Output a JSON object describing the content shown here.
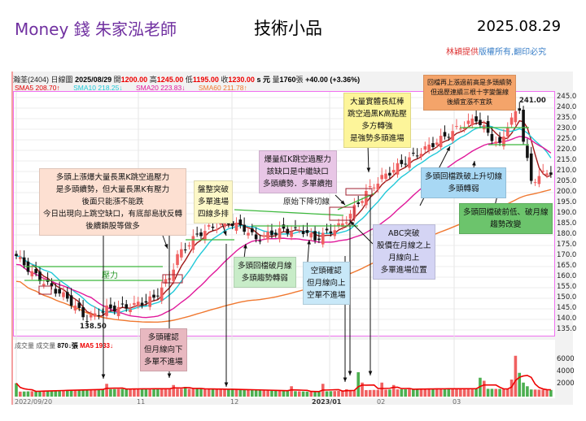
{
  "header": {
    "brand": "Money 錢  朱家泓老師",
    "title": "技術小品",
    "date": "2025.08.29",
    "copyright_red": "林穎提供",
    "copyright_blue": "版權所有,翻印必究"
  },
  "infobar": {
    "stock": "瀚荃(2404)",
    "chart_type": "日線圖",
    "date": "2025/08/29",
    "open_label": "開",
    "open": "1200.00",
    "high_label": "高",
    "high": "1245.00",
    "low_label": "低",
    "low": "1195.00",
    "close_label": "收",
    "close": "1230.00",
    "unit": "s 元",
    "volume_label": "量",
    "volume": "1760",
    "volume_unit": "張",
    "change": "+40.00 (+3.36%)"
  },
  "sma": [
    {
      "label": "SMA5 208.70↑",
      "color": "#e00000"
    },
    {
      "label": "SMA10 218.25↓",
      "color": "#20c8d8"
    },
    {
      "label": "SMA20 223.83↓",
      "color": "#e0189a"
    },
    {
      "label": "SMA60 211.78↑",
      "color": "#f07830"
    }
  ],
  "volume_header": {
    "label1": "成交量",
    "label2": "成交量",
    "value": "870↓張",
    "ma": "MA5 1933↓"
  },
  "price_axis": [
    "245.0",
    "240.0",
    "235.0",
    "230.0",
    "225.0",
    "220.0",
    "215.0",
    "210.0",
    "205.0",
    "200.0",
    "195.0",
    "190.0",
    "185.0",
    "180.0",
    "175.0",
    "170.0",
    "165.0",
    "160.0",
    "155.0",
    "150.0",
    "145.0",
    "140.0",
    "135.0"
  ],
  "volume_axis": [
    "6000",
    "4000",
    "2000"
  ],
  "date_axis": [
    "2022/09/20",
    "11",
    "12",
    "2023/01",
    "02",
    "03"
  ],
  "labels": {
    "pressure": "壓力",
    "low_price": "138.50",
    "high_price": "241.00",
    "downtrend": "原始下降切線"
  },
  "notes": [
    {
      "id": "top-right",
      "lines": [
        "回檔再上漲過前高是多頭續勢",
        "但過歷連續三根十字變盤線",
        "後續宜漲不宜跌"
      ],
      "color": "#f4a46a"
    },
    {
      "id": "long-red",
      "lines": [
        "大量實體長紅棒",
        "跳空過黑K高點壓",
        "多方轉強",
        "是強勢多頭進場"
      ],
      "color": "#fdf59a"
    },
    {
      "id": "gap",
      "lines": [
        "爆量紅K跳空過壓力",
        "該缺口是中繼缺口",
        "多頭續勢．多單續抱"
      ],
      "color": "#e8c6e6"
    },
    {
      "id": "left",
      "lines": [
        "多頭上漲爆大量長黑K跳空過壓力",
        "是多頭續勢，但大量長黑K有壓力",
        "後面只能漲不能跌",
        "今日出現向上跳空缺口，有底部島狀反轉",
        "後續鎖股等做多"
      ],
      "color": "#fde0d2"
    },
    {
      "id": "consolidation",
      "lines": [
        "盤整突破",
        "多單進場",
        "四線多排"
      ],
      "color": "#fdf8c8"
    },
    {
      "id": "below-month",
      "lines": [
        "多頭回檔破月線",
        "多頭趨勢轉弱"
      ],
      "color": "#c8ecc8"
    },
    {
      "id": "bear-confirm",
      "lines": [
        "空頭確認",
        "但月線向上",
        "空單不進場"
      ],
      "color": "#c8e8f8"
    },
    {
      "id": "abc",
      "lines": [
        "ABC突破",
        "股價在月線之上",
        "月線向上",
        "多單進場位置"
      ],
      "color": "#d4d4f4"
    },
    {
      "id": "trendline-break",
      "lines": [
        "多頭回檔跌破上升切線",
        "多頭轉弱"
      ],
      "color": "#a8d8f4"
    },
    {
      "id": "prev-low",
      "lines": [
        "多頭回檔破前低、破月線",
        "趨勢改變"
      ],
      "color": "#6cc46c"
    },
    {
      "id": "bull-confirm",
      "lines": [
        "多頭確認",
        "但月線向下",
        "多單不進場"
      ],
      "color": "#e8b8c0"
    }
  ],
  "chart_data": {
    "type": "candlestick",
    "price_range": [
      135,
      245
    ],
    "volume_range": [
      0,
      7000
    ],
    "close_keypoints": [
      [
        0,
        170
      ],
      [
        4,
        162
      ],
      [
        9,
        155
      ],
      [
        13,
        150
      ],
      [
        18,
        140
      ],
      [
        23,
        145
      ],
      [
        29,
        146
      ],
      [
        35,
        150
      ],
      [
        39,
        160
      ],
      [
        41,
        170
      ],
      [
        46,
        180
      ],
      [
        49,
        183
      ],
      [
        54,
        186
      ],
      [
        58,
        183
      ],
      [
        61,
        178
      ],
      [
        67,
        182
      ],
      [
        73,
        182
      ],
      [
        76,
        178
      ],
      [
        79,
        181
      ],
      [
        83,
        185
      ],
      [
        85,
        190
      ],
      [
        89,
        200
      ],
      [
        93,
        207
      ],
      [
        99,
        215
      ],
      [
        106,
        223
      ],
      [
        112,
        230
      ],
      [
        117,
        235
      ],
      [
        120,
        228
      ],
      [
        123,
        222
      ],
      [
        125,
        232
      ],
      [
        128,
        240
      ],
      [
        129,
        225
      ],
      [
        131,
        205
      ],
      [
        133,
        208
      ],
      [
        136,
        210
      ]
    ],
    "volume_base": 800,
    "volume_spikes": [
      [
        0,
        2200
      ],
      [
        23,
        2100
      ],
      [
        40,
        1900
      ],
      [
        43,
        1600
      ],
      [
        70,
        1700
      ],
      [
        78,
        2100
      ],
      [
        84,
        1200
      ],
      [
        87,
        4000
      ],
      [
        88,
        2300
      ],
      [
        93,
        2300
      ],
      [
        96,
        1900
      ],
      [
        118,
        3100
      ],
      [
        119,
        2600
      ],
      [
        126,
        2800
      ],
      [
        127,
        6700
      ],
      [
        128,
        3900
      ],
      [
        129,
        2300
      ],
      [
        130,
        1700
      ]
    ],
    "ma_periods": [
      5,
      10,
      20,
      60
    ],
    "ma_colors": [
      "#a01818",
      "#20c8d8",
      "#e0189a",
      "#f07830"
    ]
  }
}
